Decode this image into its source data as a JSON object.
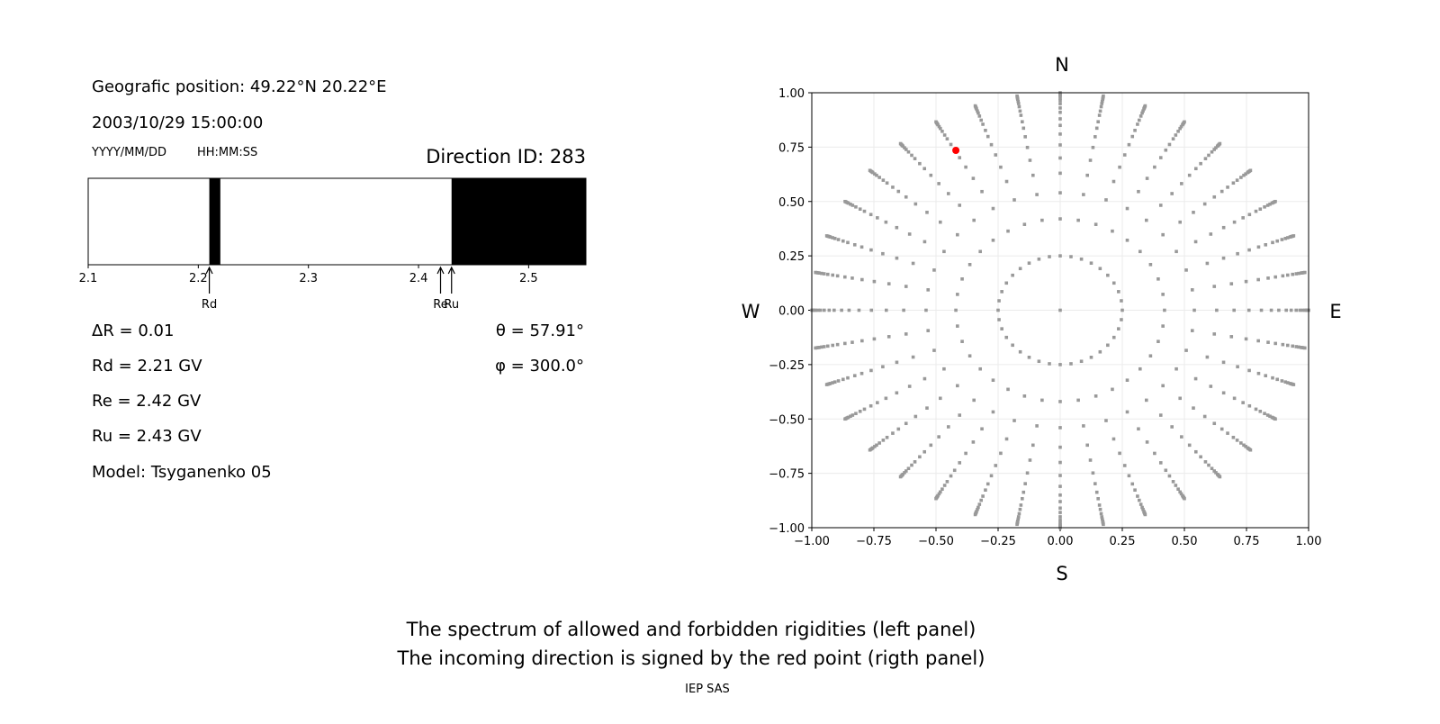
{
  "left_panel": {
    "position": "Geografic position: 49.22°N 20.22°E",
    "datetime": "2003/10/29 15:00:00",
    "date_format": "YYYY/MM/DD",
    "time_format": "HH:MM:SS",
    "direction": "Direction ID: 283",
    "params": {
      "dR": "ΔR = 0.01",
      "Rd": "Rd = 2.21 GV",
      "Re": "Re = 2.42 GV",
      "Ru": "Ru = 2.43 GV",
      "model": "Model: Tsyganenko 05",
      "theta": "θ = 57.91°",
      "phi": "φ = 300.0°"
    }
  },
  "captions": {
    "line1": "The spectrum of allowed and forbidden rigidities (left panel)",
    "line2": "The incoming direction is signed by the red point (rigth panel)",
    "credit": "IEP SAS"
  },
  "chart_data": [
    {
      "type": "bar",
      "xlim": [
        2.1,
        2.552
      ],
      "xticks": [
        "2.1",
        "2.2",
        "2.3",
        "2.4",
        "2.5"
      ],
      "forbidden_bands": [
        [
          2.21,
          2.22
        ],
        [
          2.43,
          2.552
        ]
      ],
      "band_color": "#000000",
      "markers": [
        {
          "label": "Rd",
          "value": 2.21
        },
        {
          "label": "Re",
          "value": 2.42
        },
        {
          "label": "Ru",
          "value": 2.43
        }
      ]
    },
    {
      "type": "scatter",
      "xlim": [
        -1,
        1
      ],
      "ylim": [
        -1,
        1
      ],
      "xticks": [
        "−1.00",
        "−0.75",
        "−0.50",
        "−0.25",
        "0.00",
        "0.25",
        "0.50",
        "0.75",
        "1.00"
      ],
      "yticks": [
        "−1.00",
        "−0.75",
        "−0.50",
        "−0.25",
        "0.00",
        "0.25",
        "0.50",
        "0.75",
        "1.00"
      ],
      "grid": true,
      "compass": {
        "N": "N",
        "S": "S",
        "W": "W",
        "E": "E"
      },
      "grid_points": {
        "color": "#999999",
        "center": [
          0,
          0
        ],
        "inner_ring_radius": 0.25,
        "inner_ring_count": 36,
        "spoke_azimuth_step_deg": 10,
        "spoke_radii": [
          0.42,
          0.54,
          0.63,
          0.7,
          0.76,
          0.81,
          0.85,
          0.88,
          0.91,
          0.93,
          0.95,
          0.965,
          0.975,
          0.985,
          0.99,
          0.995,
          1.0
        ]
      },
      "highlight_point": {
        "x": -0.42,
        "y": 0.735,
        "color": "#ff0000"
      }
    }
  ]
}
